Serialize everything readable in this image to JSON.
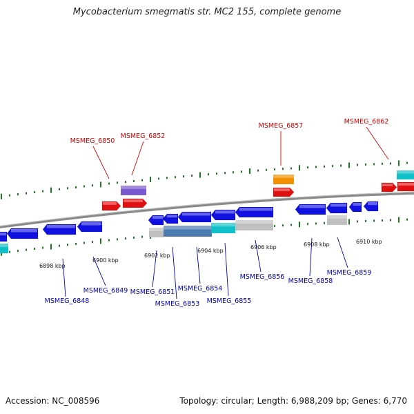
{
  "title": "Mycobacterium smegmatis str. MC2 155, complete genome",
  "accession": "Accession: NC_008596",
  "topology": "Topology: circular; Length: 6,988,209 bp; Genes: 6,770",
  "colors": {
    "forward_gene": "#e01010",
    "reverse_gene": "#1010e0",
    "forward_label": "#d00000",
    "reverse_label": "#0000b0",
    "backbone": "#8a8a8a",
    "tick": "#1a7a1a",
    "rna": "#f29000",
    "purple": "#7a5ad0",
    "cyan": "#10c0c8",
    "grey": "#c0c0c0",
    "steel": "#4a7ab0"
  },
  "kbp_ticks": [
    {
      "label": "6898 kbp"
    },
    {
      "label": "6900 kbp"
    },
    {
      "label": "6902 kbp"
    },
    {
      "label": "6904 kbp"
    },
    {
      "label": "6906 kbp"
    },
    {
      "label": "6908 kbp"
    },
    {
      "label": "6910 kbp"
    }
  ],
  "forward_labels": [
    "MSMEG_6850",
    "MSMEG_6852",
    "MSMEG_6857",
    "MSMEG_6862"
  ],
  "reverse_labels": [
    "MSMEG_6848",
    "MSMEG_6849",
    "MSMEG_6851",
    "MSMEG_6853",
    "MSMEG_6854",
    "MSMEG_6855",
    "MSMEG_6856",
    "MSMEG_6858",
    "MSMEG_6859"
  ]
}
